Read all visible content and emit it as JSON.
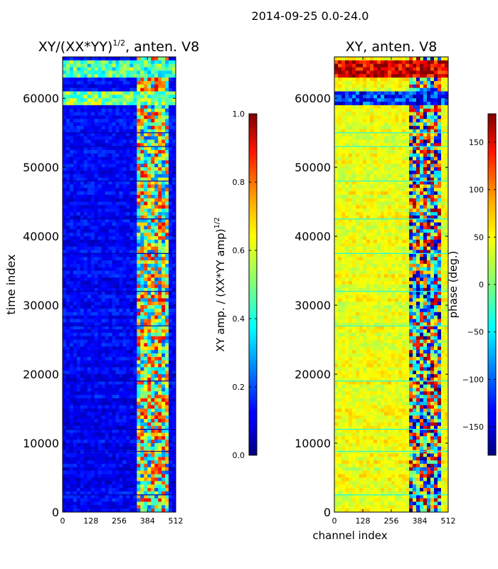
{
  "figure": {
    "suptitle": "2014-09-25 0.0-24.0"
  },
  "chart_data": [
    {
      "type": "heatmap",
      "title_base": "XY/(XX*YY)",
      "title_exp": "1/2",
      "title_suffix": ", anten. V8",
      "xlabel": "",
      "ylabel": "time index",
      "xlim": [
        0,
        512
      ],
      "ylim": [
        0,
        66000
      ],
      "xticks": [
        0,
        128,
        256,
        384,
        512
      ],
      "yticks": [
        0,
        10000,
        20000,
        30000,
        40000,
        50000,
        60000
      ],
      "colormap": "jet",
      "colorbar": {
        "label_base": "XY amp. / (XX*YY amp)",
        "label_exp": "1/2",
        "range": [
          0.0,
          1.0
        ],
        "ticks": [
          "0.0",
          "0.2",
          "0.4",
          "0.6",
          "0.8",
          "1.0"
        ],
        "tick_values": [
          0.0,
          0.2,
          0.4,
          0.6,
          0.8,
          1.0
        ]
      },
      "regions": [
        {
          "desc": "low background (channels 0-330)",
          "value": 0.12
        },
        {
          "desc": "high-variance band (channels 330-480)",
          "value": 0.55
        },
        {
          "desc": "bright stripe near time 64000",
          "value": 0.45
        },
        {
          "desc": "bright stripe near time 60000",
          "value": 0.5
        }
      ]
    },
    {
      "type": "heatmap",
      "title": "XY, anten. V8",
      "xlabel": "channel index",
      "ylabel": "",
      "xlim": [
        0,
        512
      ],
      "ylim": [
        0,
        66000
      ],
      "xticks": [
        0,
        128,
        256,
        384,
        512
      ],
      "yticks": [
        0,
        10000,
        20000,
        30000,
        40000,
        50000,
        60000
      ],
      "colormap": "jet",
      "colorbar": {
        "label": "phase (deg.)",
        "range": [
          -180,
          180
        ],
        "ticks": [
          "−150",
          "−100",
          "−50",
          "0",
          "50",
          "100",
          "150"
        ],
        "tick_values": [
          -150,
          -100,
          -50,
          0,
          50,
          100,
          150
        ]
      },
      "regions": [
        {
          "desc": "background phase (channels 0-330)",
          "value": 40
        },
        {
          "desc": "wrapping phase band (channels 330-480)",
          "value": 0
        },
        {
          "desc": "stripe near time 64000",
          "value": 150
        },
        {
          "desc": "stripe near time 60000",
          "value": -120
        }
      ]
    }
  ]
}
